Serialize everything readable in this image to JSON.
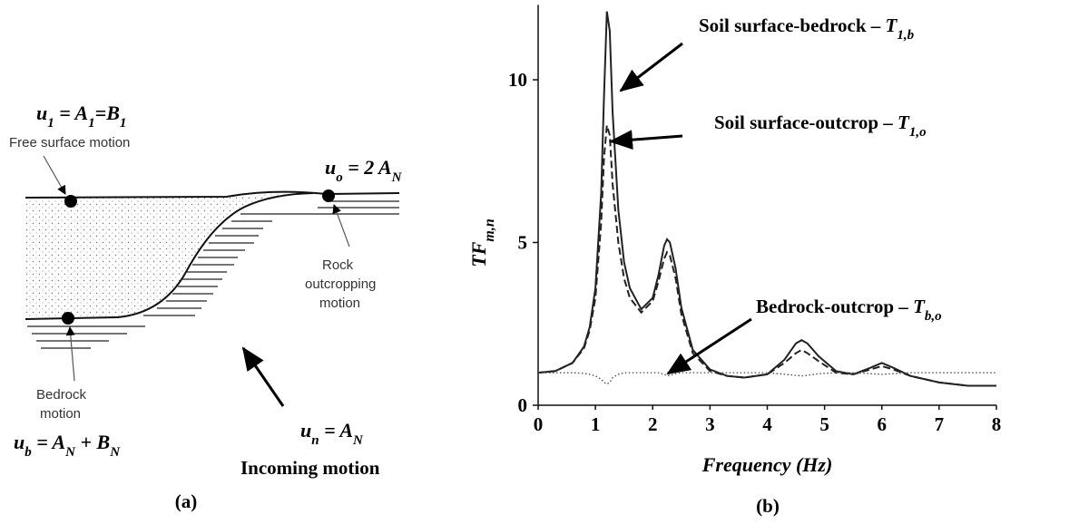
{
  "diagram": {
    "formulas": [
      {
        "parts": [
          "u",
          "1",
          " = A",
          "1",
          "=B",
          "1"
        ]
      },
      {
        "parts": [
          "u",
          "o",
          " = 2 A",
          "N"
        ]
      },
      {
        "parts": [
          "u",
          "b",
          " = A",
          "N",
          " + B",
          "N"
        ]
      },
      {
        "parts": [
          "u",
          "n",
          " = A",
          "N"
        ]
      }
    ],
    "labels": {
      "free_surface": "Free surface motion",
      "rock": [
        "Rock",
        "outcropping",
        "motion"
      ],
      "bedrock": [
        "Bedrock",
        "motion"
      ],
      "incoming": "Incoming motion"
    },
    "caption": "(a)"
  },
  "chart_data": {
    "type": "line",
    "caption": "(b)",
    "x_label": "Frequency (Hz)",
    "y_label": {
      "main": "TF",
      "sub": "m,n"
    },
    "x": [
      0,
      0.3,
      0.6,
      0.8,
      0.9,
      1.0,
      1.1,
      1.15,
      1.2,
      1.25,
      1.3,
      1.4,
      1.5,
      1.6,
      1.8,
      2.0,
      2.1,
      2.2,
      2.25,
      2.3,
      2.4,
      2.5,
      2.7,
      3.0,
      3.3,
      3.6,
      4.0,
      4.3,
      4.5,
      4.6,
      4.7,
      4.9,
      5.2,
      5.5,
      5.8,
      6.0,
      6.2,
      6.5,
      7.0,
      7.5,
      8.0
    ],
    "series": [
      {
        "color": "#222222",
        "style": "solid",
        "values": [
          1.0,
          1.05,
          1.3,
          1.8,
          2.4,
          3.6,
          6.5,
          9.5,
          12.1,
          11.5,
          9.0,
          6.0,
          4.4,
          3.6,
          2.95,
          3.3,
          4.0,
          4.9,
          5.1,
          5.0,
          4.2,
          3.0,
          1.7,
          1.1,
          0.9,
          0.85,
          0.95,
          1.4,
          1.9,
          2.0,
          1.9,
          1.5,
          1.05,
          0.95,
          1.15,
          1.3,
          1.15,
          0.9,
          0.7,
          0.6,
          0.6
        ]
      },
      {
        "color": "#222222",
        "style": "dashed",
        "values": [
          1.0,
          1.05,
          1.3,
          1.75,
          2.3,
          3.3,
          5.6,
          7.6,
          8.6,
          8.3,
          6.8,
          5.0,
          3.9,
          3.3,
          2.85,
          3.2,
          3.8,
          4.5,
          4.7,
          4.6,
          3.9,
          2.8,
          1.6,
          1.05,
          0.9,
          0.85,
          0.95,
          1.3,
          1.6,
          1.7,
          1.6,
          1.35,
          1.0,
          0.95,
          1.1,
          1.2,
          1.1,
          0.9,
          0.7,
          0.6,
          0.6
        ]
      },
      {
        "color": "#444444",
        "style": "dotted",
        "values": [
          1,
          1,
          1,
          0.98,
          0.95,
          0.9,
          0.8,
          0.7,
          0.65,
          0.7,
          0.85,
          0.95,
          1,
          1,
          1,
          1,
          1,
          0.95,
          0.9,
          0.92,
          0.97,
          1,
          1,
          1,
          1,
          1,
          1,
          0.95,
          0.92,
          0.9,
          0.92,
          0.97,
          1,
          1,
          0.97,
          0.95,
          0.97,
          1,
          1,
          1,
          1
        ]
      }
    ],
    "annotations": [
      {
        "text": "Soil surface-bedrock – ",
        "symbol": "T",
        "sub": "1,b"
      },
      {
        "text": "Soil surface-outcrop – ",
        "symbol": "T",
        "sub": "1,o"
      },
      {
        "text": "Bedrock-outcrop – ",
        "symbol": "T",
        "sub": "b,o"
      }
    ],
    "xlim": [
      0,
      8
    ],
    "xticks": [
      0,
      1,
      2,
      3,
      4,
      5,
      6,
      7,
      8
    ],
    "ylim": [
      0,
      12.3
    ],
    "yticks": [
      0,
      5,
      10
    ]
  }
}
